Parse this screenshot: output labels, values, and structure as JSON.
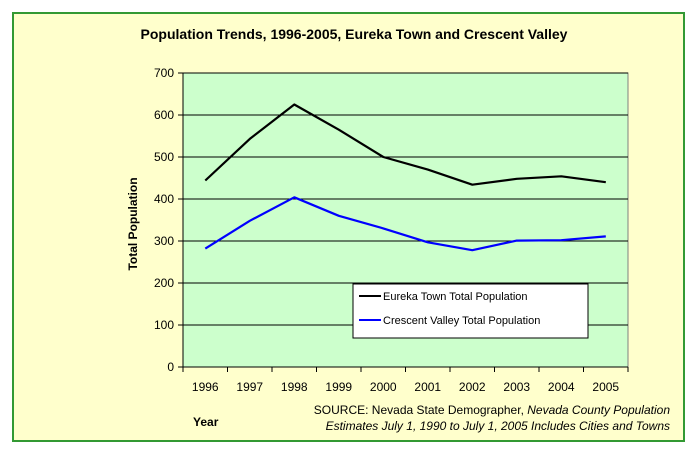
{
  "chart_data": {
    "type": "line",
    "title": "Population Trends, 1996-2005, Eureka Town and Crescent Valley",
    "xlabel": "Year",
    "ylabel": "Total Population",
    "x": [
      "1996",
      "1997",
      "1998",
      "1999",
      "2000",
      "2001",
      "2002",
      "2003",
      "2004",
      "2005"
    ],
    "ylim": [
      0,
      700
    ],
    "yticks": [
      0,
      100,
      200,
      300,
      400,
      500,
      600,
      700
    ],
    "grid": true,
    "legend_position": "lower-right",
    "series": [
      {
        "name": "Eureka Town Total Population",
        "color": "#000000",
        "values": [
          444,
          543,
          625,
          565,
          500,
          470,
          434,
          448,
          454,
          440
        ]
      },
      {
        "name": "Crescent Valley Total Population",
        "color": "#0000ff",
        "values": [
          282,
          348,
          404,
          360,
          330,
          297,
          278,
          301,
          302,
          311
        ]
      }
    ],
    "plot_background": "#ccffcc",
    "source": {
      "prefix": "SOURCE: Nevada State Demographer, ",
      "italic_1": "Nevada County Population",
      "line2": "Estimates July 1, 1990 to July 1, 2005 Includes Cities and Towns"
    }
  }
}
